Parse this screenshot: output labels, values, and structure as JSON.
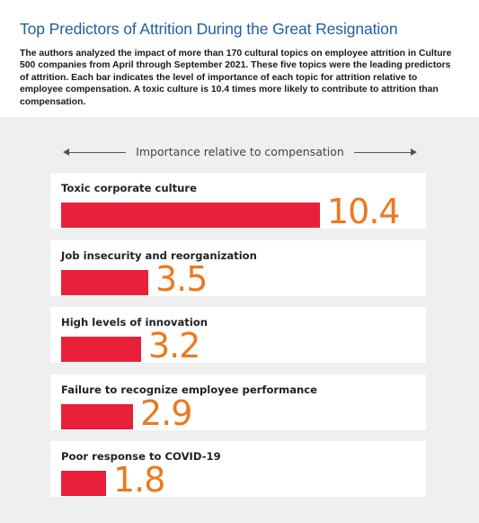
{
  "header": {
    "title": "Top Predictors of Attrition During the Great Resignation",
    "description": "The authors analyzed the impact of more than 170 cultural topics on employee attrition in Culture 500 companies from April through September 2021. These five topics were the leading predictors of attrition. Each bar indicates the level of importance of each topic for attrition relative to employee compensation. A toxic culture is 10.4 times more likely to contribute to attrition than compensation."
  },
  "colors": {
    "bar": "#e8203a",
    "value": "#ea7a1f",
    "title": "#1f5f9e",
    "panel": "#efefef"
  },
  "chart_data": {
    "type": "bar",
    "orientation": "horizontal",
    "axis_label": "Importance relative to compensation",
    "categories": [
      "Toxic corporate culture",
      "Job insecurity and reorganization",
      "High levels of innovation",
      "Failure to recognize employee performance",
      "Poor response to COVID-19"
    ],
    "values": [
      10.4,
      3.5,
      3.2,
      2.9,
      1.8
    ],
    "value_labels": [
      "10.4",
      "3.5",
      "3.2",
      "2.9",
      "1.8"
    ],
    "xlim": [
      0,
      10.4
    ],
    "grid": false,
    "legend": "none"
  }
}
